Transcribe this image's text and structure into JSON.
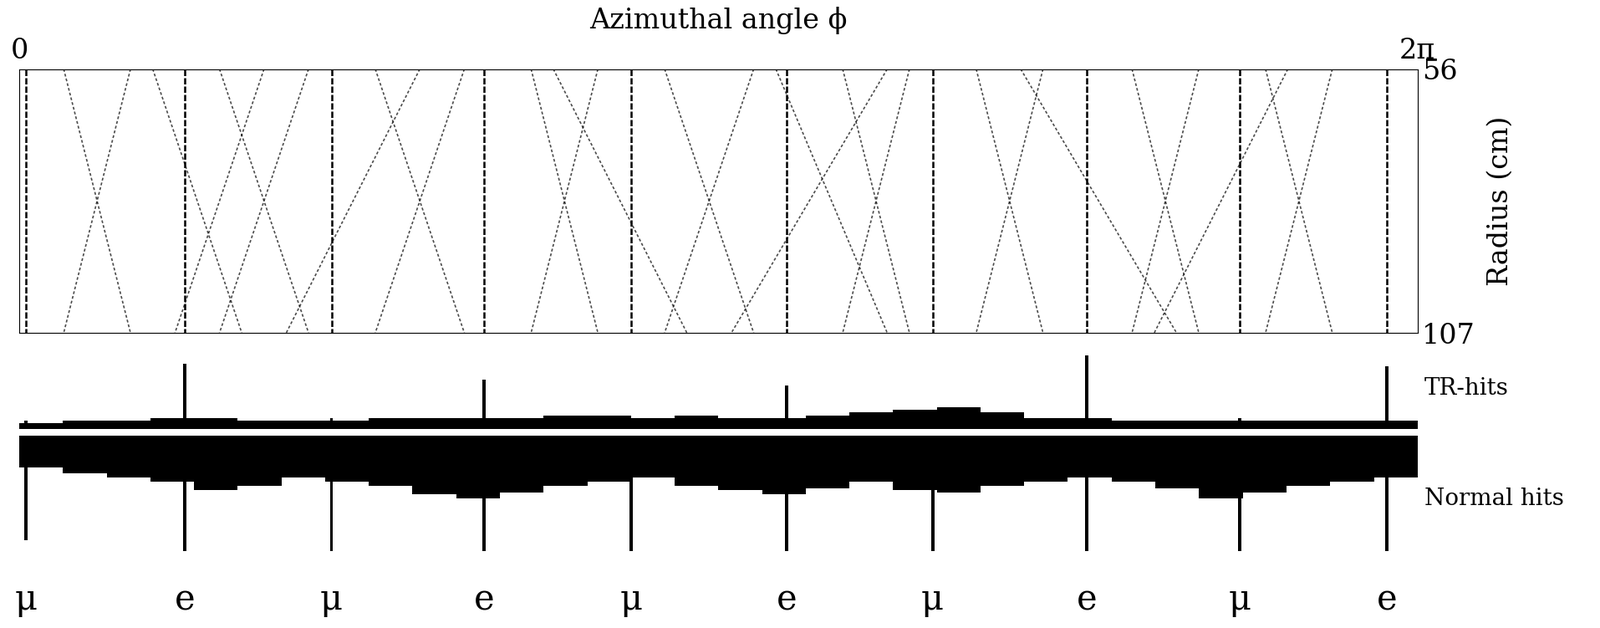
{
  "chart_data": {
    "type": "event_display",
    "title": "Azimuthal angle ϕ",
    "xlim": [
      0,
      6.2832
    ],
    "xticks": [
      {
        "value": 0,
        "label": "0"
      },
      {
        "value": 6.2832,
        "label": "2π"
      }
    ],
    "ylabel": "Radius (cm)",
    "ylim": [
      107,
      56
    ],
    "yticks": [
      56,
      107
    ],
    "tracks": [
      {
        "label": "μ",
        "phi": 0.032,
        "tr_hits": 3,
        "normal_hits": 50
      },
      {
        "label": "e",
        "phi": 0.745,
        "tr_hits": 24,
        "normal_hits": 55
      },
      {
        "label": "μ",
        "phi": 1.403,
        "tr_hits": 4,
        "normal_hits": 55
      },
      {
        "label": "e",
        "phi": 2.088,
        "tr_hits": 18,
        "normal_hits": 55
      },
      {
        "label": "μ",
        "phi": 2.751,
        "tr_hits": 4,
        "normal_hits": 55
      },
      {
        "label": "e",
        "phi": 3.45,
        "tr_hits": 16,
        "normal_hits": 55
      },
      {
        "label": "μ",
        "phi": 4.104,
        "tr_hits": 4,
        "normal_hits": 55
      },
      {
        "label": "e",
        "phi": 4.798,
        "tr_hits": 27,
        "normal_hits": 55
      },
      {
        "label": "μ",
        "phi": 5.484,
        "tr_hits": 4,
        "normal_hits": 55
      },
      {
        "label": "e",
        "phi": 6.146,
        "tr_hits": 23,
        "normal_hits": 55
      }
    ],
    "background_tracks": [
      [
        0.2,
        0.5
      ],
      [
        0.5,
        0.2
      ],
      [
        0.9,
        1.3
      ],
      [
        1.3,
        0.9
      ],
      [
        1.6,
        2.0
      ],
      [
        2.0,
        1.6
      ],
      [
        2.3,
        2.6
      ],
      [
        2.6,
        2.3
      ],
      [
        2.9,
        3.3
      ],
      [
        3.3,
        2.9
      ],
      [
        3.7,
        4.0
      ],
      [
        4.0,
        3.7
      ],
      [
        4.3,
        4.6
      ],
      [
        4.6,
        4.3
      ],
      [
        5.0,
        5.3
      ],
      [
        5.3,
        5.0
      ],
      [
        5.6,
        5.9
      ],
      [
        5.9,
        5.6
      ],
      [
        0.6,
        1.0
      ],
      [
        1.1,
        0.7
      ],
      [
        2.4,
        3.0
      ],
      [
        3.9,
        3.2
      ],
      [
        4.5,
        5.2
      ],
      [
        5.7,
        5.1
      ],
      [
        3.4,
        3.9
      ],
      [
        1.8,
        1.2
      ]
    ],
    "histograms": [
      {
        "name": "TR-hits",
        "ylim": [
          0,
          30
        ],
        "counts": [
          2,
          3,
          3,
          4,
          4,
          3,
          3,
          3,
          4,
          4,
          4,
          4,
          5,
          5,
          4,
          5,
          4,
          4,
          5,
          6,
          7,
          8,
          6,
          4,
          4,
          3,
          3,
          3,
          3,
          3,
          3,
          3
        ]
      },
      {
        "name": "Normal hits",
        "ylim": [
          0,
          60
        ],
        "counts": [
          15,
          18,
          20,
          22,
          26,
          24,
          20,
          22,
          24,
          28,
          30,
          27,
          24,
          22,
          20,
          24,
          26,
          28,
          25,
          22,
          26,
          27,
          24,
          22,
          20,
          22,
          25,
          30,
          27,
          24,
          22,
          20
        ]
      }
    ],
    "bins": [
      0,
      0.196,
      0.393,
      0.589,
      0.785,
      0.982,
      1.178,
      1.374,
      1.571,
      1.767,
      1.963,
      2.16,
      2.356,
      2.553,
      2.749,
      2.945,
      3.142,
      3.338,
      3.534,
      3.731,
      3.927,
      4.123,
      4.32,
      4.516,
      4.712,
      4.909,
      5.105,
      5.301,
      5.498,
      5.694,
      5.89,
      6.087,
      6.283
    ],
    "tick_labels": false,
    "color": "#000000"
  }
}
